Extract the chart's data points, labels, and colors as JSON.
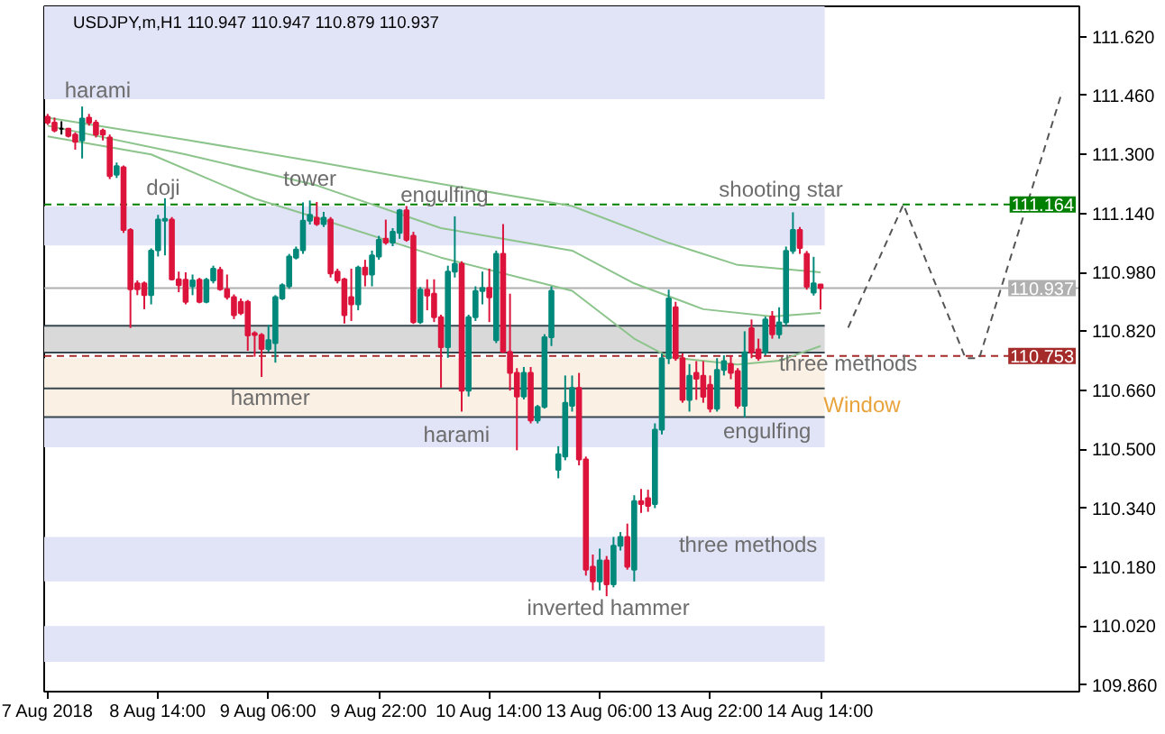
{
  "chart_data": {
    "type": "candlestick",
    "title": "USDJPY,m,H1 110.947 110.947 110.879 110.937",
    "categories": [
      "7 Aug 2018",
      null,
      null,
      null,
      null,
      null,
      null,
      null,
      null,
      null,
      null,
      null,
      null,
      null,
      null,
      null,
      "8 Aug 14:00",
      null,
      null,
      null,
      null,
      null,
      null,
      null,
      null,
      null,
      null,
      null,
      null,
      null,
      null,
      null,
      "9 Aug 06:00",
      null,
      null,
      null,
      null,
      null,
      null,
      null,
      null,
      null,
      null,
      null,
      null,
      null,
      null,
      null,
      "9 Aug 22:00",
      null,
      null,
      null,
      null,
      null,
      null,
      null,
      null,
      null,
      null,
      null,
      null,
      null,
      null,
      null,
      "10 Aug 14:00",
      null,
      null,
      null,
      null,
      null,
      null,
      null,
      null,
      null,
      null,
      null,
      null,
      null,
      null,
      null,
      "13 Aug 06:00",
      null,
      null,
      null,
      null,
      null,
      null,
      null,
      null,
      null,
      null,
      null,
      null,
      null,
      null,
      null,
      "13 Aug 22:00",
      null,
      null,
      null,
      null,
      null,
      null,
      null,
      null,
      null,
      null,
      null,
      null,
      null,
      null,
      null,
      "14 Aug 14:00",
      null,
      null,
      null,
      null,
      null,
      null,
      null,
      null,
      null,
      null,
      null,
      null,
      null,
      null,
      null,
      null,
      null,
      null,
      null,
      null,
      null,
      null,
      null,
      null,
      null,
      null,
      null,
      null,
      null,
      null,
      null,
      null,
      null,
      null,
      null,
      null,
      null
    ],
    "ohlc": [
      [
        111.402,
        111.41,
        111.38,
        111.386
      ],
      [
        111.386,
        111.4,
        111.36,
        111.365
      ],
      [
        111.37,
        111.39,
        111.354,
        111.37
      ],
      [
        111.37,
        111.372,
        111.346,
        111.35
      ],
      [
        111.354,
        111.36,
        111.313,
        111.334
      ],
      [
        111.338,
        111.43,
        111.289,
        111.397
      ],
      [
        111.4,
        111.41,
        111.378,
        111.386
      ],
      [
        111.386,
        111.394,
        111.346,
        111.354
      ],
      [
        111.365,
        111.37,
        111.338,
        111.354
      ],
      [
        111.346,
        111.354,
        111.233,
        111.241
      ],
      [
        111.245,
        111.278,
        111.236,
        111.268
      ],
      [
        111.265,
        111.27,
        111.087,
        111.095
      ],
      [
        111.095,
        111.1,
        110.829,
        110.934
      ],
      [
        110.95,
        110.958,
        110.918,
        110.934
      ],
      [
        110.95,
        110.955,
        110.88,
        110.918
      ],
      [
        110.918,
        111.045,
        110.893,
        111.039
      ],
      [
        111.04,
        111.136,
        111.023,
        111.123
      ],
      [
        111.12,
        111.181,
        111.026,
        111.125
      ],
      [
        111.123,
        111.13,
        110.958,
        110.961
      ],
      [
        110.961,
        110.982,
        110.926,
        110.945
      ],
      [
        110.96,
        110.98,
        110.893,
        110.9
      ],
      [
        110.942,
        110.974,
        110.918,
        110.958
      ],
      [
        110.96,
        110.965,
        110.896,
        110.9
      ],
      [
        110.9,
        110.965,
        110.896,
        110.96
      ],
      [
        110.958,
        110.998,
        110.95,
        110.99
      ],
      [
        110.987,
        110.995,
        110.93,
        110.934
      ],
      [
        110.934,
        110.974,
        110.906,
        110.913
      ],
      [
        110.913,
        110.92,
        110.853,
        110.864
      ],
      [
        110.9,
        110.909,
        110.864,
        110.869
      ],
      [
        110.9,
        110.905,
        110.767,
        110.809
      ],
      [
        110.815,
        110.82,
        110.751,
        110.81
      ],
      [
        110.81,
        110.815,
        110.696,
        110.772
      ],
      [
        110.772,
        110.837,
        110.764,
        110.796
      ],
      [
        110.788,
        110.918,
        110.735,
        110.913
      ],
      [
        110.909,
        110.95,
        110.905,
        110.945
      ],
      [
        110.942,
        111.03,
        110.935,
        111.023
      ],
      [
        111.02,
        111.05,
        111.015,
        111.042
      ],
      [
        111.04,
        111.17,
        111.03,
        111.12
      ],
      [
        111.12,
        111.175,
        111.11,
        111.136
      ],
      [
        111.128,
        111.171,
        111.106,
        111.111
      ],
      [
        111.111,
        111.144,
        111.103,
        111.128
      ],
      [
        111.123,
        111.13,
        110.966,
        110.977
      ],
      [
        110.982,
        110.99,
        110.95,
        110.958
      ],
      [
        110.961,
        110.965,
        110.841,
        110.864
      ],
      [
        110.913,
        110.99,
        110.848,
        110.893
      ],
      [
        110.893,
        110.998,
        110.877,
        110.993
      ],
      [
        110.993,
        111.014,
        110.942,
        110.974
      ],
      [
        110.974,
        111.039,
        110.942,
        111.026
      ],
      [
        111.023,
        111.079,
        111.014,
        111.068
      ],
      [
        111.071,
        111.123,
        111.055,
        111.061
      ],
      [
        111.061,
        111.1,
        111.051,
        111.09
      ],
      [
        111.087,
        111.152,
        111.071,
        111.148
      ],
      [
        111.148,
        111.16,
        111.063,
        111.068
      ],
      [
        111.079,
        111.09,
        110.84,
        110.845
      ],
      [
        110.845,
        110.94,
        110.84,
        110.933
      ],
      [
        110.933,
        110.961,
        110.877,
        110.917
      ],
      [
        110.922,
        110.961,
        110.845,
        110.858
      ],
      [
        110.858,
        110.865,
        110.667,
        110.777
      ],
      [
        110.777,
        110.998,
        110.748,
        110.982
      ],
      [
        110.982,
        111.132,
        110.966,
        111.003
      ],
      [
        111.003,
        111.01,
        110.602,
        110.659
      ],
      [
        110.659,
        110.865,
        110.643,
        110.858
      ],
      [
        110.858,
        110.942,
        110.848,
        110.929
      ],
      [
        110.929,
        110.982,
        110.893,
        110.938
      ],
      [
        110.938,
        110.99,
        110.845,
        110.912
      ],
      [
        110.796,
        111.039,
        110.788,
        111.03
      ],
      [
        111.03,
        111.111,
        110.761,
        110.764
      ],
      [
        110.764,
        110.922,
        110.659,
        110.707
      ],
      [
        110.707,
        110.72,
        110.497,
        110.643
      ],
      [
        110.643,
        110.723,
        110.635,
        110.707
      ],
      [
        110.707,
        110.723,
        110.57,
        110.578
      ],
      [
        110.578,
        110.62,
        110.57,
        110.615
      ],
      [
        110.615,
        110.812,
        110.61,
        110.804
      ],
      [
        110.804,
        110.942,
        110.78,
        110.93
      ],
      [
        110.444,
        110.508,
        110.421,
        110.486
      ],
      [
        110.48,
        110.7,
        110.47,
        110.626
      ],
      [
        110.618,
        110.7,
        110.602,
        110.666
      ],
      [
        110.666,
        110.707,
        110.456,
        110.472
      ],
      [
        110.472,
        110.48,
        110.157,
        110.173
      ],
      [
        110.181,
        110.214,
        110.117,
        110.141
      ],
      [
        110.141,
        110.23,
        110.117,
        110.198
      ],
      [
        110.198,
        110.21,
        110.101,
        110.133
      ],
      [
        110.133,
        110.262,
        110.125,
        110.238
      ],
      [
        110.238,
        110.275,
        110.225,
        110.262
      ],
      [
        110.262,
        110.298,
        110.173,
        110.181
      ],
      [
        110.173,
        110.375,
        110.141,
        110.359
      ],
      [
        110.359,
        110.392,
        110.327,
        110.351
      ],
      [
        110.367,
        110.39,
        110.33,
        110.346
      ],
      [
        110.351,
        110.57,
        110.34,
        110.553
      ],
      [
        110.553,
        110.76,
        110.54,
        110.747
      ],
      [
        110.747,
        110.933,
        110.731,
        110.909
      ],
      [
        110.885,
        110.9,
        110.74,
        110.747
      ],
      [
        110.747,
        110.76,
        110.626,
        110.634
      ],
      [
        110.634,
        110.731,
        110.602,
        110.699
      ],
      [
        110.707,
        110.739,
        110.634,
        110.691
      ],
      [
        110.699,
        110.739,
        110.626,
        110.642
      ],
      [
        110.675,
        110.7,
        110.6,
        110.61
      ],
      [
        110.61,
        110.747,
        110.602,
        110.715
      ],
      [
        110.715,
        110.755,
        110.7,
        110.739
      ],
      [
        110.731,
        110.755,
        110.69,
        110.707
      ],
      [
        110.712,
        110.72,
        110.61,
        110.618
      ],
      [
        110.618,
        110.82,
        110.586,
        110.763
      ],
      [
        110.828,
        110.852,
        110.747,
        110.763
      ],
      [
        110.771,
        110.8,
        110.74,
        110.747
      ],
      [
        110.763,
        110.86,
        110.755,
        110.852
      ],
      [
        110.86,
        110.875,
        110.8,
        110.812
      ],
      [
        110.812,
        110.885,
        110.8,
        110.844
      ],
      [
        110.844,
        111.05,
        110.835,
        111.038
      ],
      [
        111.038,
        111.143,
        111.03,
        111.095
      ],
      [
        111.095,
        111.103,
        111.03,
        111.046
      ],
      [
        111.03,
        111.038,
        110.933,
        110.941
      ],
      [
        110.925,
        111.022,
        110.917,
        110.95
      ],
      [
        110.947,
        110.947,
        110.879,
        110.937
      ],
      null,
      null,
      null,
      null,
      null,
      null,
      null,
      null,
      null,
      null,
      null,
      null,
      null,
      null,
      null,
      null,
      null,
      null,
      null,
      null,
      null,
      null,
      null,
      null,
      null,
      null,
      null,
      null,
      null,
      null,
      null,
      null,
      null,
      null,
      null,
      null,
      null
    ],
    "colors": [
      "#dc143c",
      "#dc143c",
      "#000000",
      "#dc143c",
      "#dc143c",
      "#00897b",
      "#dc143c",
      "#dc143c",
      "#dc143c",
      "#dc143c",
      "#00897b",
      "#dc143c",
      "#dc143c",
      "#dc143c",
      "#dc143c",
      "#00897b",
      "#00897b",
      "#00897b",
      "#dc143c",
      "#dc143c",
      "#dc143c",
      "#00897b",
      "#dc143c",
      "#00897b",
      "#00897b",
      "#dc143c",
      "#dc143c",
      "#dc143c",
      "#dc143c",
      "#dc143c",
      "#dc143c",
      "#dc143c",
      "#00897b",
      "#00897b",
      "#00897b",
      "#00897b",
      "#00897b",
      "#00897b",
      "#00897b",
      "#dc143c",
      "#00897b",
      "#dc143c",
      "#dc143c",
      "#dc143c",
      "#dc143c",
      "#00897b",
      "#dc143c",
      "#00897b",
      "#00897b",
      "#dc143c",
      "#00897b",
      "#00897b",
      "#dc143c",
      "#dc143c",
      "#00897b",
      "#dc143c",
      "#dc143c",
      "#dc143c",
      "#00897b",
      "#00897b",
      "#dc143c",
      "#00897b",
      "#00897b",
      "#00897b",
      "#dc143c",
      "#00897b",
      "#dc143c",
      "#dc143c",
      "#dc143c",
      "#00897b",
      "#dc143c",
      "#00897b",
      "#00897b",
      "#00897b",
      "#00897b",
      "#00897b",
      "#00897b",
      "#dc143c",
      "#dc143c",
      "#dc143c",
      "#00897b",
      "#dc143c",
      "#00897b",
      "#00897b",
      "#dc143c",
      "#00897b",
      "#dc143c",
      "#dc143c",
      "#00897b",
      "#00897b",
      "#00897b",
      "#dc143c",
      "#dc143c",
      "#00897b",
      "#dc143c",
      "#dc143c",
      "#dc143c",
      "#00897b",
      "#00897b",
      "#dc143c",
      "#dc143c",
      "#00897b",
      "#dc143c",
      "#dc143c",
      "#00897b",
      "#dc143c",
      "#00897b",
      "#00897b",
      "#00897b",
      "#dc143c",
      "#dc143c",
      "#00897b",
      "#dc143c",
      null,
      null,
      null,
      null,
      null,
      null,
      null,
      null,
      null,
      null,
      null,
      null,
      null,
      null,
      null,
      null,
      null,
      null,
      null,
      null,
      null,
      null,
      null,
      null,
      null,
      null,
      null,
      null,
      null,
      null,
      null,
      null,
      null,
      null,
      null,
      null,
      null
    ],
    "series": [
      {
        "type": "line",
        "color": "#8cc48c",
        "values": [
          111.4,
          null,
          null,
          null,
          null,
          null,
          null,
          null,
          null,
          null,
          null,
          null,
          null,
          null,
          null,
          null,
          null,
          null,
          null,
          null,
          111.34,
          null,
          null,
          null,
          null,
          null,
          null,
          null,
          null,
          null,
          null,
          null,
          null,
          null,
          null,
          null,
          null,
          null,
          null,
          111.28,
          null,
          null,
          null,
          null,
          null,
          null,
          null,
          null,
          null,
          null,
          null,
          null,
          null,
          null,
          null,
          null,
          null,
          111.22,
          null,
          null,
          null,
          null,
          null,
          null,
          null,
          null,
          null,
          null,
          null,
          null,
          null,
          null,
          null,
          null,
          null,
          null,
          111.16,
          null,
          null,
          null,
          null,
          null,
          null,
          null,
          null,
          null,
          null,
          null,
          null,
          null,
          111.06,
          null,
          null,
          null,
          null,
          null,
          null,
          null,
          null,
          null,
          111.0,
          null,
          null,
          null,
          null,
          null,
          null,
          null,
          null,
          null,
          null,
          null,
          110.98,
          null,
          null,
          null,
          null,
          null,
          null,
          null,
          null,
          null,
          null,
          null,
          null,
          null,
          null,
          null,
          null,
          null,
          null,
          null,
          null,
          null,
          null,
          null,
          null,
          null,
          null,
          null,
          null,
          null,
          null,
          null,
          null,
          null,
          null,
          null,
          null,
          null
        ]
      },
      {
        "type": "line",
        "color": "#8cc48c",
        "values": [
          111.378,
          null,
          null,
          null,
          null,
          null,
          null,
          null,
          null,
          null,
          null,
          null,
          null,
          null,
          null,
          null,
          null,
          null,
          null,
          null,
          111.3,
          null,
          null,
          null,
          null,
          null,
          null,
          null,
          null,
          null,
          null,
          null,
          null,
          null,
          null,
          null,
          null,
          null,
          null,
          111.216,
          null,
          null,
          null,
          null,
          null,
          null,
          null,
          null,
          null,
          null,
          null,
          null,
          null,
          null,
          null,
          null,
          null,
          111.1,
          null,
          null,
          null,
          null,
          null,
          null,
          null,
          null,
          null,
          null,
          null,
          null,
          null,
          null,
          null,
          null,
          null,
          null,
          111.039,
          null,
          null,
          null,
          null,
          null,
          null,
          null,
          null,
          110.95,
          null,
          null,
          null,
          null,
          null,
          null,
          null,
          null,
          null,
          110.88,
          null,
          null,
          null,
          null,
          null,
          null,
          null,
          null,
          null,
          110.86,
          null,
          null,
          null,
          null,
          null,
          null,
          110.87,
          null,
          null,
          null,
          null,
          null,
          null,
          null,
          null,
          null,
          null,
          null,
          null,
          null,
          null,
          null,
          null,
          null,
          null,
          null,
          null,
          null,
          null,
          null,
          null,
          null,
          null,
          null,
          null,
          null,
          null,
          null,
          null,
          null,
          null,
          null,
          null,
          null
        ]
      },
      {
        "type": "line",
        "color": "#8cc48c",
        "values": [
          111.349,
          null,
          null,
          null,
          null,
          null,
          null,
          null,
          null,
          null,
          null,
          null,
          null,
          null,
          null,
          111.3,
          null,
          null,
          null,
          null,
          null,
          null,
          null,
          null,
          null,
          null,
          null,
          null,
          null,
          null,
          111.18,
          null,
          null,
          null,
          null,
          null,
          null,
          null,
          null,
          111.128,
          null,
          null,
          null,
          null,
          null,
          null,
          null,
          null,
          null,
          null,
          null,
          null,
          null,
          null,
          null,
          null,
          null,
          111.02,
          null,
          null,
          null,
          null,
          null,
          null,
          null,
          null,
          null,
          null,
          null,
          null,
          null,
          null,
          null,
          null,
          null,
          null,
          110.93,
          null,
          null,
          null,
          null,
          null,
          null,
          null,
          null,
          110.8,
          null,
          null,
          null,
          null,
          110.75,
          null,
          null,
          null,
          null,
          null,
          null,
          null,
          null,
          null,
          110.73,
          null,
          null,
          null,
          null,
          null,
          110.74,
          null,
          null,
          null,
          null,
          null,
          110.78,
          null,
          null,
          null,
          null,
          null,
          null,
          null,
          null,
          null,
          null,
          null,
          null,
          null,
          null,
          null,
          null,
          null,
          null,
          null,
          null,
          null,
          null,
          null,
          null,
          null,
          null,
          null,
          null,
          null,
          null,
          null,
          null,
          null,
          null,
          null,
          null,
          null
        ]
      },
      {
        "type": "line",
        "color": "#555555",
        "line_style": "dashed",
        "values": [
          null,
          null,
          null,
          null,
          null,
          null,
          null,
          null,
          null,
          null,
          null,
          null,
          null,
          null,
          null,
          null,
          null,
          null,
          null,
          null,
          null,
          null,
          null,
          null,
          null,
          null,
          null,
          null,
          null,
          null,
          null,
          null,
          null,
          null,
          null,
          null,
          null,
          null,
          null,
          null,
          null,
          null,
          null,
          null,
          null,
          null,
          null,
          null,
          null,
          null,
          null,
          null,
          null,
          null,
          null,
          null,
          null,
          null,
          null,
          null,
          null,
          null,
          null,
          null,
          null,
          null,
          null,
          null,
          null,
          null,
          null,
          null,
          null,
          null,
          null,
          null,
          null,
          null,
          null,
          null,
          null,
          null,
          null,
          null,
          null,
          null,
          null,
          null,
          null,
          null,
          null,
          null,
          null,
          null,
          null,
          null,
          null,
          null,
          null,
          null,
          null,
          null,
          null,
          null,
          null,
          null,
          null,
          null,
          null,
          null,
          null,
          null,
          null,
          null,
          null,
          null,
          110.83,
          null,
          null,
          null,
          null,
          null,
          null,
          null,
          111.164,
          null,
          null,
          null,
          null,
          null,
          null,
          null,
          null,
          110.747,
          null,
          110.747,
          null,
          null,
          null,
          null,
          null,
          null,
          null,
          null,
          null,
          null,
          null,
          111.47,
          null,
          null
        ]
      }
    ],
    "ylim": [
      109.842,
      111.702
    ],
    "yticks": [
      {
        "value": 111.62,
        "label": "111.620"
      },
      {
        "value": 111.46,
        "label": "111.460"
      },
      {
        "value": 111.3,
        "label": "111.300"
      },
      {
        "value": 111.14,
        "label": "111.140"
      },
      {
        "value": 110.98,
        "label": "110.980"
      },
      {
        "value": 110.82,
        "label": "110.820"
      },
      {
        "value": 110.66,
        "label": "110.660"
      },
      {
        "value": 110.5,
        "label": "110.500"
      },
      {
        "value": 110.34,
        "label": "110.340"
      },
      {
        "value": 110.18,
        "label": "110.180"
      },
      {
        "value": 110.02,
        "label": "110.020"
      },
      {
        "value": 109.86,
        "label": "109.860"
      }
    ],
    "bands": [
      {
        "axis": "y",
        "from": 111.45,
        "to": 111.702,
        "color": "#e1e3f7"
      },
      {
        "axis": "y",
        "from": 111.053,
        "to": 111.159,
        "color": "#e1e3f7"
      },
      {
        "axis": "y",
        "from": 110.762,
        "to": 110.835,
        "color": "#d9d9d9"
      },
      {
        "axis": "y",
        "from": 110.665,
        "to": 110.747,
        "color": "#fbf0e4"
      },
      {
        "axis": "y",
        "from": 110.587,
        "to": 110.665,
        "color": "#fbf0e4"
      },
      {
        "axis": "y",
        "from": 110.505,
        "to": 110.587,
        "color": "#e1e3f7"
      },
      {
        "axis": "y",
        "from": 110.141,
        "to": 110.262,
        "color": "#e1e3f7"
      },
      {
        "axis": "y",
        "from": 109.923,
        "to": 110.02,
        "color": "#e1e3f7"
      }
    ],
    "ref_lines": [
      {
        "axis": "y",
        "value": 110.835,
        "color": "#37474f"
      },
      {
        "axis": "y",
        "value": 110.762,
        "color": "#37474f"
      },
      {
        "axis": "y",
        "value": 110.665,
        "color": "#37474f"
      },
      {
        "axis": "y",
        "value": 110.587,
        "color": "#37474f"
      },
      {
        "axis": "y",
        "value": 110.937,
        "label": "110.937",
        "color": "#b0b0b0"
      },
      {
        "axis": "y",
        "value": 111.164,
        "label": "111.164",
        "color": "#008000",
        "line_style": "dashed"
      },
      {
        "axis": "y",
        "value": 110.753,
        "label": "110.753",
        "color": "#a52a2a",
        "line_style": "dashed"
      }
    ],
    "annotations": [
      "harami",
      "doji",
      "tower",
      "engulfing",
      "shooting star",
      "hammer",
      "harami",
      "three methods",
      "three methods",
      "Window",
      "engulfing",
      "inverted hammer"
    ],
    "grid": false
  }
}
